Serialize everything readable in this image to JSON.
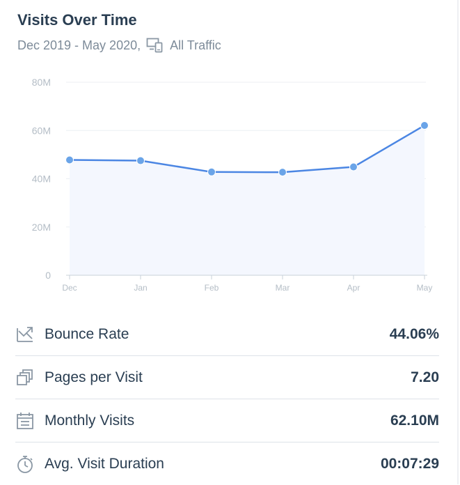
{
  "header": {
    "title": "Visits Over Time",
    "date_range": "Dec 2019 - May 2020,",
    "traffic_filter": "All Traffic",
    "filter_icon": "devices-icon"
  },
  "chart_data": {
    "type": "area",
    "title": "Visits Over Time",
    "categories": [
      "Dec",
      "Jan",
      "Feb",
      "Mar",
      "Apr",
      "May"
    ],
    "series": [
      {
        "name": "Visits",
        "values": [
          47.8,
          47.5,
          42.8,
          42.7,
          44.9,
          62.1
        ],
        "unit": "M"
      }
    ],
    "y_ticks": [
      "0",
      "20M",
      "40M",
      "60M",
      "80M"
    ],
    "y_tick_values": [
      0,
      20,
      40,
      60,
      80
    ],
    "ylim": [
      0,
      80
    ],
    "grid": true,
    "legend": "none",
    "line_color": "#4b86e3",
    "fill_color": "#f4f7fe",
    "marker_color": "#6aa4e8"
  },
  "metrics": [
    {
      "label": "Bounce Rate",
      "value": "44.06%",
      "icon": "bounce-rate-icon"
    },
    {
      "label": "Pages per Visit",
      "value": "7.20",
      "icon": "pages-icon"
    },
    {
      "label": "Monthly Visits",
      "value": "62.10M",
      "icon": "calendar-icon"
    },
    {
      "label": "Avg. Visit Duration",
      "value": "00:07:29",
      "icon": "stopwatch-icon"
    }
  ]
}
